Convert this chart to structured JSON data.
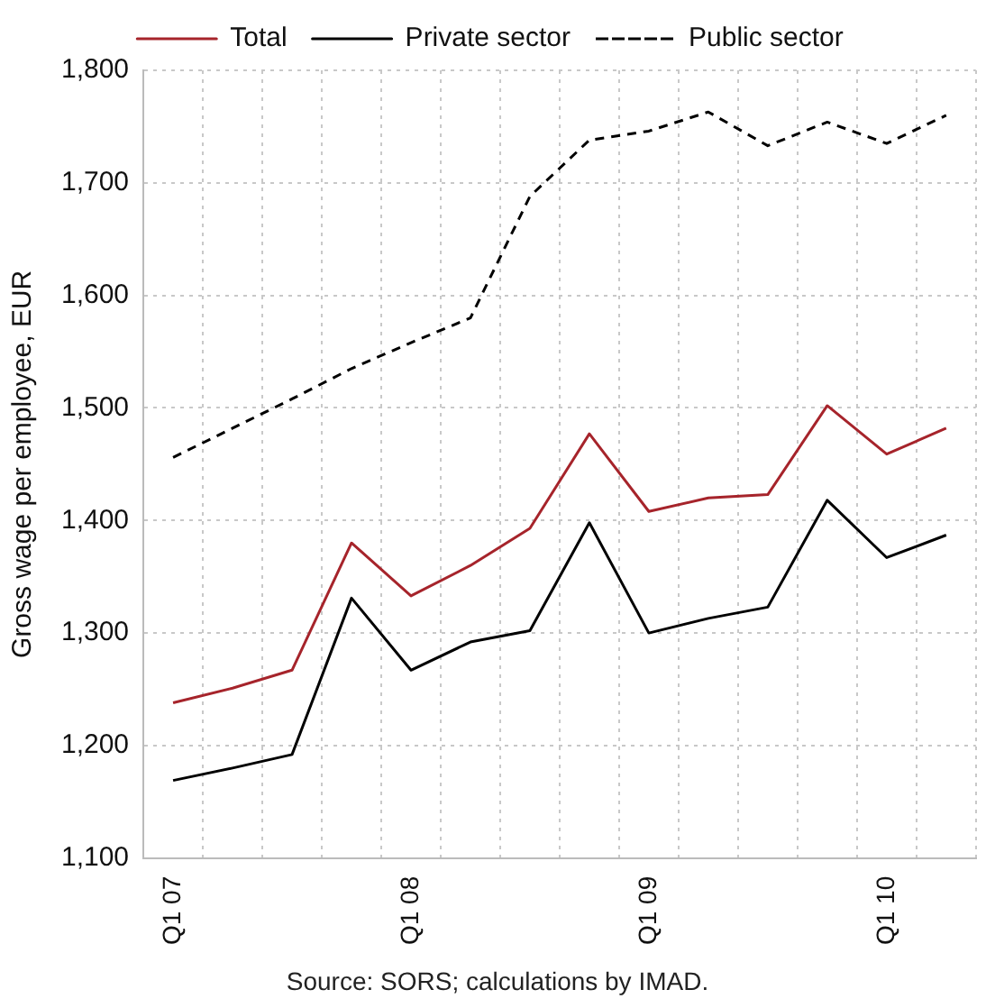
{
  "chart_data": {
    "type": "line",
    "ylabel": "Gross wage per employee, EUR",
    "categories": [
      "Q1 07",
      null,
      null,
      null,
      "Q1 08",
      null,
      null,
      null,
      "Q1 09",
      null,
      null,
      null,
      "Q1 10",
      null
    ],
    "series": [
      {
        "name": "Total",
        "color": "#a6242b",
        "values": [
          1238,
          1251,
          1267,
          1380,
          1333,
          1360,
          1393,
          1477,
          1408,
          1420,
          1423,
          1502,
          1459,
          1482
        ]
      },
      {
        "name": "Private sector",
        "color": "#000000",
        "values": [
          1169,
          1180,
          1192,
          1331,
          1267,
          1292,
          1302,
          1398,
          1300,
          1313,
          1323,
          1418,
          1367,
          1387
        ]
      },
      {
        "name": "Public sector",
        "color": "#000000",
        "line_style": "dashed",
        "values": [
          1456,
          1482,
          1508,
          1535,
          1558,
          1580,
          1688,
          1738,
          1746,
          1763,
          1733,
          1754,
          1735,
          1760
        ]
      }
    ],
    "ylim": [
      1100,
      1800
    ],
    "yticks": [
      {
        "value": 1100,
        "label": "1,100"
      },
      {
        "value": 1200,
        "label": "1,200"
      },
      {
        "value": 1300,
        "label": "1,300"
      },
      {
        "value": 1400,
        "label": "1,400"
      },
      {
        "value": 1500,
        "label": "1,500"
      },
      {
        "value": 1600,
        "label": "1,600"
      },
      {
        "value": 1700,
        "label": "1,700"
      },
      {
        "value": 1800,
        "label": "1,800"
      }
    ],
    "grid": true,
    "legend": "top",
    "marker": "none",
    "annotations": [
      "Source: SORS; calculations by IMAD."
    ]
  }
}
